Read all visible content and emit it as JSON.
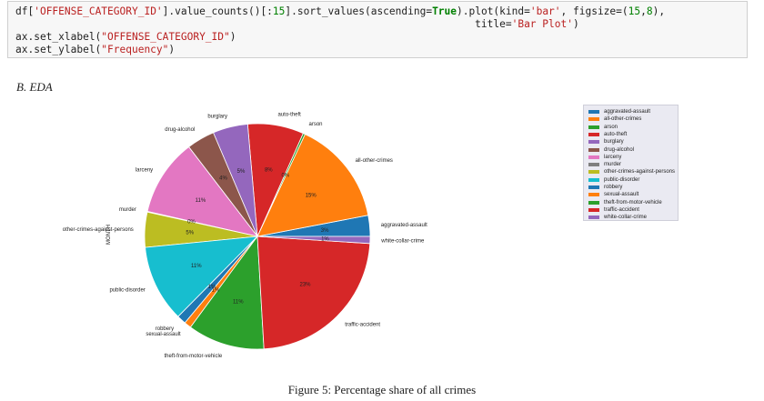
{
  "code_cell": {
    "line1_prefix": "df[",
    "line1_str1": "'OFFENSE_CATEGORY_ID'",
    "line1_mid1": "].value_counts()[:",
    "line1_num1": "15",
    "line1_mid2": "].sort_values(ascending=",
    "line1_kw": "True",
    "line1_mid3": ").plot(kind=",
    "line1_str2": "'bar'",
    "line1_mid4": ", figsize=(",
    "line1_num2": "15",
    "line1_comma": ",",
    "line1_num3": "8",
    "line1_mid5": "),",
    "line2_indent": "                                                                           ",
    "line2_prefix": "title=",
    "line2_str": "'Bar Plot'",
    "line2_suffix": ")",
    "line3_prefix": "ax.set_xlabel(",
    "line3_str": "\"OFFENSE_CATEGORY_ID\"",
    "line3_suffix": ")",
    "line4_prefix": "ax.set_ylabel(",
    "line4_str": "\"Frequency\"",
    "line4_suffix": ")"
  },
  "section": {
    "heading": "B.    EDA"
  },
  "chart_data": {
    "type": "pie",
    "ylabel": "MONTH",
    "legend_position": "right",
    "slices": [
      {
        "label": "aggravated-assault",
        "value": 3,
        "pct_label": "3%",
        "color": "#1f77b4"
      },
      {
        "label": "all-other-crimes",
        "value": 15,
        "pct_label": "15%",
        "color": "#ff7f0e"
      },
      {
        "label": "arson",
        "value": 0.3,
        "pct_label": "0%",
        "color": "#2ca02c"
      },
      {
        "label": "auto-theft",
        "value": 8,
        "pct_label": "8%",
        "color": "#d62728"
      },
      {
        "label": "burglary",
        "value": 5,
        "pct_label": "5%",
        "color": "#9467bd"
      },
      {
        "label": "drug-alcohol",
        "value": 4,
        "pct_label": "4%",
        "color": "#8c564b"
      },
      {
        "label": "larceny",
        "value": 11,
        "pct_label": "11%",
        "color": "#e377c2"
      },
      {
        "label": "murder",
        "value": 0.1,
        "pct_label": "0%",
        "color": "#7f7f7f"
      },
      {
        "label": "other-crimes-against-persons",
        "value": 5,
        "pct_label": "5%",
        "color": "#bcbd22"
      },
      {
        "label": "public-disorder",
        "value": 11,
        "pct_label": "11%",
        "color": "#17becf"
      },
      {
        "label": "robbery",
        "value": 1.3,
        "pct_label": "1%",
        "color": "#1f77b4"
      },
      {
        "label": "sexual-assault",
        "value": 1,
        "pct_label": "1%",
        "color": "#ff7f0e"
      },
      {
        "label": "theft-from-motor-vehicle",
        "value": 11,
        "pct_label": "11%",
        "color": "#2ca02c"
      },
      {
        "label": "traffic-accident",
        "value": 23,
        "pct_label": "23%",
        "color": "#d62728"
      },
      {
        "label": "white-collar-crime",
        "value": 1,
        "pct_label": "1%",
        "color": "#9467bd"
      }
    ]
  },
  "caption": "Figure 5: Percentage share of all crimes"
}
